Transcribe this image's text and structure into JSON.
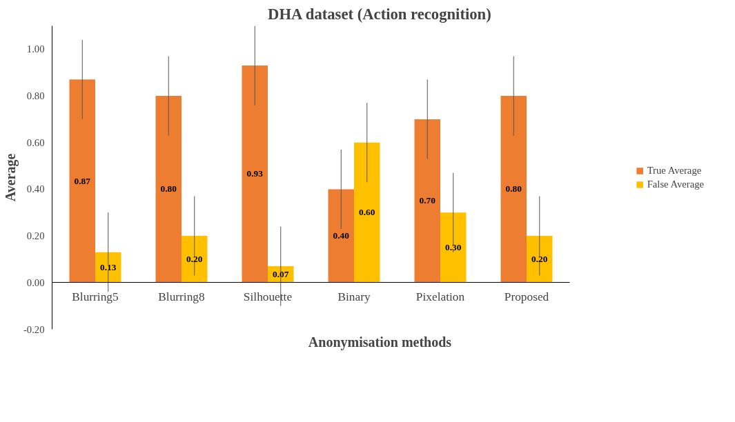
{
  "chart_data": {
    "type": "bar",
    "title": "DHA dataset (Action recognition)",
    "xlabel": "Anonymisation methods",
    "ylabel": "Average",
    "categories": [
      "Blurring5",
      "Blurring8",
      "Silhouette",
      "Binary",
      "Pixelation",
      "Proposed"
    ],
    "series": [
      {
        "name": "True Average",
        "color": "#ed7d31",
        "values": [
          0.87,
          0.8,
          0.93,
          0.4,
          0.7,
          0.8
        ],
        "errors": [
          0.17,
          0.17,
          0.17,
          0.17,
          0.17,
          0.17
        ],
        "value_labels": [
          "0.87",
          "0.80",
          "0.93",
          "0.40",
          "0.70",
          "0.80"
        ]
      },
      {
        "name": "False Average",
        "color": "#ffc000",
        "values": [
          0.13,
          0.2,
          0.07,
          0.6,
          0.3,
          0.2
        ],
        "errors": [
          0.17,
          0.17,
          0.17,
          0.17,
          0.17,
          0.17
        ],
        "value_labels": [
          "0.13",
          "0.20",
          "0.07",
          "0.60",
          "0.30",
          "0.20"
        ]
      }
    ],
    "ylim": [
      -0.2,
      1.1
    ],
    "yticks": [
      {
        "value": -0.2,
        "label": "-0.20"
      },
      {
        "value": 0,
        "label": "0.00"
      },
      {
        "value": 0.2,
        "label": "0.20"
      },
      {
        "value": 0.4,
        "label": "0.40"
      },
      {
        "value": 0.6,
        "label": "0.60"
      },
      {
        "value": 0.8,
        "label": "0.80"
      },
      {
        "value": 1.0,
        "label": "1.00"
      }
    ],
    "grid": false,
    "legend": "right"
  }
}
